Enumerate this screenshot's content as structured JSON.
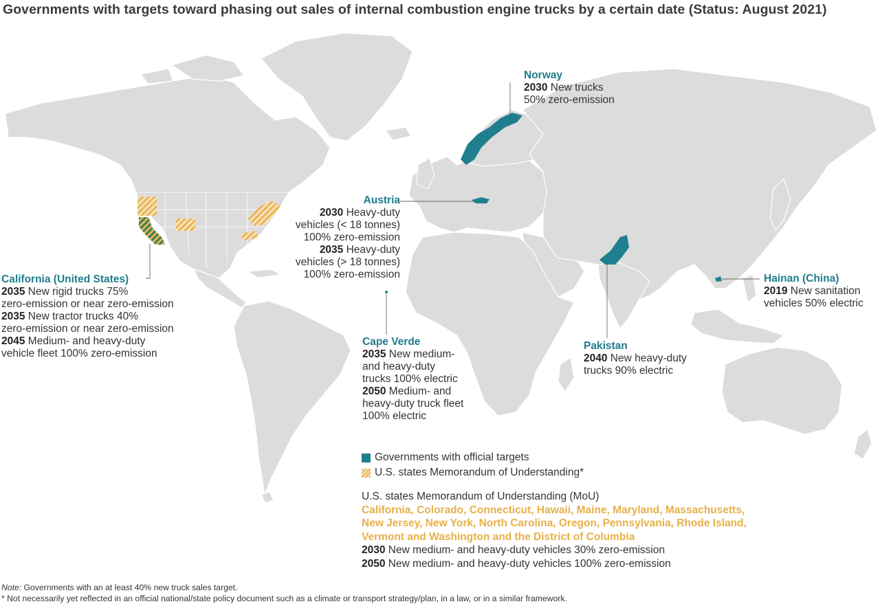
{
  "title": "Governments with targets toward phasing out sales of internal combustion engine trucks by a certain date (Status: August 2021)",
  "colors": {
    "land": "#dcdcdc",
    "border": "#ffffff",
    "official": "#1f7f8f",
    "mou_stripe": "#e9b458",
    "california_stripe": "#3f7e55"
  },
  "labels": {
    "norway": {
      "name": "Norway",
      "lines": [
        {
          "year": "2030",
          "text": " New trucks"
        },
        {
          "year": "",
          "text": "50% zero-emission"
        }
      ]
    },
    "austria": {
      "name": "Austria",
      "lines": [
        {
          "year": "2030",
          "text": " Heavy-duty"
        },
        {
          "year": "",
          "text": "vehicles (< 18 tonnes)"
        },
        {
          "year": "",
          "text": "100% zero-emission"
        },
        {
          "year": "2035",
          "text": " Heavy-duty"
        },
        {
          "year": "",
          "text": "vehicles (> 18 tonnes)"
        },
        {
          "year": "",
          "text": "100% zero-emission"
        }
      ]
    },
    "california": {
      "name": "California (United States)",
      "lines": [
        {
          "year": "2035",
          "text": " New rigid trucks 75%"
        },
        {
          "year": "",
          "text": "zero-emission or near zero-emission"
        },
        {
          "year": "2035",
          "text": " New tractor trucks 40%"
        },
        {
          "year": "",
          "text": "zero-emission or near zero-emission"
        },
        {
          "year": "2045",
          "text": " Medium- and heavy-duty"
        },
        {
          "year": "",
          "text": "vehicle fleet 100% zero-emission"
        }
      ]
    },
    "cape_verde": {
      "name": "Cape Verde",
      "lines": [
        {
          "year": "2035",
          "text": " New medium-"
        },
        {
          "year": "",
          "text": "and heavy-duty"
        },
        {
          "year": "",
          "text": "trucks 100% electric"
        },
        {
          "year": "2050",
          "text": " Medium- and"
        },
        {
          "year": "",
          "text": "heavy-duty truck fleet"
        },
        {
          "year": "",
          "text": "100% electric"
        }
      ]
    },
    "pakistan": {
      "name": "Pakistan",
      "lines": [
        {
          "year": "2040",
          "text": " New heavy-duty"
        },
        {
          "year": "",
          "text": "trucks 90% electric"
        }
      ]
    },
    "hainan": {
      "name": "Hainan (China)",
      "lines": [
        {
          "year": "2019",
          "text": " New sanitation"
        },
        {
          "year": "",
          "text": "vehicles 50% electric"
        }
      ]
    }
  },
  "legend": {
    "official": "Governments with official targets",
    "mou": "U.S. states Memorandum of Understanding*"
  },
  "mou_block": {
    "heading": "U.S. states Memorandum of Understanding (MoU)",
    "states_lines": [
      "California, Colorado, Connecticut, Hawaii, Maine, Maryland, Massachusetts,",
      "New Jersey, New York, North Carolina, Oregon, Pennsylvania, Rhode Island,",
      "Vermont and Washington and the District of Columbia"
    ],
    "targets": [
      {
        "year": "2030",
        "text": " New medium- and heavy-duty vehicles 30% zero-emission"
      },
      {
        "year": "2050",
        "text": " New medium- and heavy-duty vehicles 100% zero-emission"
      }
    ]
  },
  "notes": {
    "note_label": "Note:",
    "note_text": " Governments with an at least 40% new truck sales target.",
    "footnote": "* Not necessarily yet reflected in an official national/state policy document such as a climate or transport strategy/plan, in a law, or in a similar framework."
  }
}
